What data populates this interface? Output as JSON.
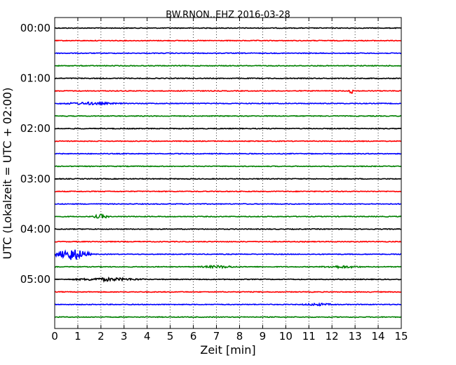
{
  "chart_data": {
    "type": "line",
    "title": "BW.RNON..EHZ 2016-03-28",
    "xlabel": "Zeit  [min]",
    "ylabel": "UTC (Lokalzeit = UTC + 02:00)",
    "xlim": [
      0,
      15
    ],
    "x_ticks": [
      "0",
      "1",
      "2",
      "3",
      "4",
      "5",
      "6",
      "7",
      "8",
      "9",
      "10",
      "11",
      "12",
      "13",
      "14",
      "15"
    ],
    "y_ticks": [
      "00:00",
      "01:00",
      "02:00",
      "03:00",
      "04:00",
      "05:00"
    ],
    "grid": "vertical dotted",
    "trace_interval_min": 15,
    "trace_colors": [
      "#000000",
      "#ff0000",
      "#0000ff",
      "#008000"
    ],
    "traces": [
      {
        "start": "00:00",
        "events": []
      },
      {
        "start": "00:15",
        "events": []
      },
      {
        "start": "00:30",
        "events": []
      },
      {
        "start": "00:45",
        "events": []
      },
      {
        "start": "01:00",
        "events": []
      },
      {
        "start": "01:15",
        "events": [
          {
            "t": 12.85,
            "amp": 4,
            "dur": 0.15
          }
        ]
      },
      {
        "start": "01:30",
        "events": [
          {
            "t": 1.5,
            "amp": 1.5,
            "dur": 1.5
          }
        ]
      },
      {
        "start": "01:45",
        "events": []
      },
      {
        "start": "02:00",
        "events": []
      },
      {
        "start": "02:15",
        "events": []
      },
      {
        "start": "02:30",
        "events": []
      },
      {
        "start": "02:45",
        "events": []
      },
      {
        "start": "03:00",
        "events": []
      },
      {
        "start": "03:15",
        "events": []
      },
      {
        "start": "03:30",
        "events": []
      },
      {
        "start": "03:45",
        "events": [
          {
            "t": 2.0,
            "amp": 3,
            "dur": 0.4
          }
        ]
      },
      {
        "start": "04:00",
        "events": []
      },
      {
        "start": "04:15",
        "events": []
      },
      {
        "start": "04:30",
        "events": [
          {
            "t": 0.75,
            "amp": 9,
            "dur": 0.9
          }
        ]
      },
      {
        "start": "04:45",
        "events": [
          {
            "t": 7.1,
            "amp": 1.5,
            "dur": 1.0
          },
          {
            "t": 12.4,
            "amp": 1.5,
            "dur": 1.0
          }
        ]
      },
      {
        "start": "05:00",
        "events": [
          {
            "t": 2.3,
            "amp": 2,
            "dur": 1.8
          }
        ]
      },
      {
        "start": "05:15",
        "events": []
      },
      {
        "start": "05:30",
        "events": [
          {
            "t": 11.4,
            "amp": 1.5,
            "dur": 0.8
          }
        ]
      },
      {
        "start": "05:45",
        "events": []
      }
    ]
  }
}
